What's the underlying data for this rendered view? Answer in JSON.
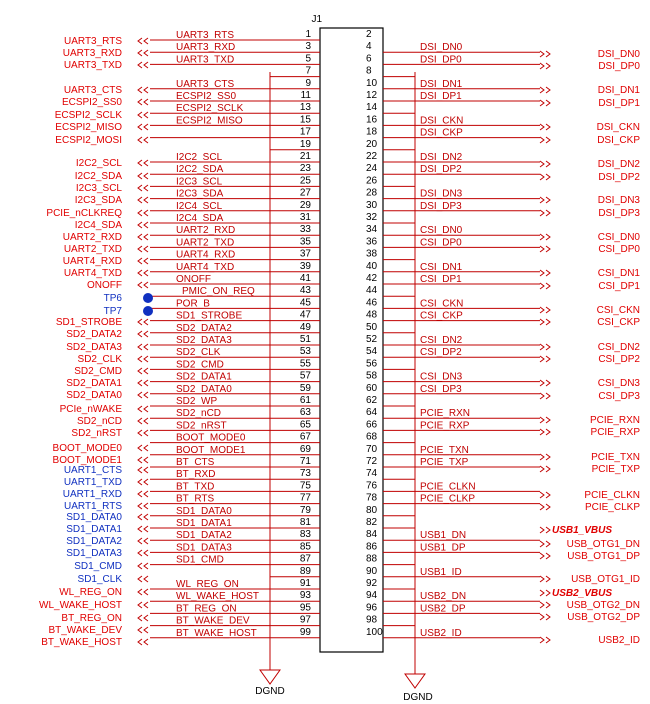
{
  "designator": "J1",
  "ground_labels": [
    "DGND",
    "DGND"
  ],
  "left_pins": [
    {
      "number": 1,
      "net": "UART3_RTS"
    },
    {
      "number": 3,
      "net": "UART3_RXD"
    },
    {
      "number": 5,
      "net": "UART3_TXD"
    },
    {
      "number": 7
    },
    {
      "number": 9,
      "net": "UART3_CTS"
    },
    {
      "number": 11,
      "net": "ECSPI2_SS0"
    },
    {
      "number": 13,
      "net": "ECSPI2_SCLK"
    },
    {
      "number": 15,
      "net": "ECSPI2_MISO"
    },
    {
      "number": 17
    },
    {
      "number": 19
    },
    {
      "number": 21,
      "net": "I2C2_SCL"
    },
    {
      "number": 23,
      "net": "I2C2_SDA"
    },
    {
      "number": 25,
      "net": "I2C3_SCL"
    },
    {
      "number": 27,
      "net": "I2C3_SDA"
    },
    {
      "number": 29,
      "net": "I2C4_SCL"
    },
    {
      "number": 31,
      "net": "I2C4_SDA"
    },
    {
      "number": 33,
      "net": "UART2_RXD"
    },
    {
      "number": 35,
      "net": "UART2_TXD"
    },
    {
      "number": 37,
      "net": "UART4_RXD"
    },
    {
      "number": 39,
      "net": "UART4_TXD"
    },
    {
      "number": 41,
      "net": "ONOFF"
    },
    {
      "number": 43,
      "net": "PMIC_ON_REQ"
    },
    {
      "number": 45,
      "net": "POR_B"
    },
    {
      "number": 47,
      "net": "SD1_STROBE"
    },
    {
      "number": 49,
      "net": "SD2_DATA2"
    },
    {
      "number": 51,
      "net": "SD2_DATA3"
    },
    {
      "number": 53,
      "net": "SD2_CLK"
    },
    {
      "number": 55,
      "net": "SD2_CMD"
    },
    {
      "number": 57,
      "net": "SD2_DATA1"
    },
    {
      "number": 59,
      "net": "SD2_DATA0"
    },
    {
      "number": 61,
      "net": "SD2_WP"
    },
    {
      "number": 63,
      "net": "SD2_nCD"
    },
    {
      "number": 65,
      "net": "SD2_nRST"
    },
    {
      "number": 67,
      "net": "BOOT_MODE0"
    },
    {
      "number": 69,
      "net": "BOOT_MODE1"
    },
    {
      "number": 71,
      "net": "BT_CTS"
    },
    {
      "number": 73,
      "net": "BT_RXD"
    },
    {
      "number": 75,
      "net": "BT_TXD"
    },
    {
      "number": 77,
      "net": "BT_RTS"
    },
    {
      "number": 79,
      "net": "SD1_DATA0"
    },
    {
      "number": 81,
      "net": "SD1_DATA1"
    },
    {
      "number": 83,
      "net": "SD1_DATA2"
    },
    {
      "number": 85,
      "net": "SD1_DATA3"
    },
    {
      "number": 87,
      "net": "SD1_CMD"
    },
    {
      "number": 89
    },
    {
      "number": 91,
      "net": "WL_REG_ON"
    },
    {
      "number": 93,
      "net": "WL_WAKE_HOST"
    },
    {
      "number": 95,
      "net": "BT_REG_ON"
    },
    {
      "number": 97,
      "net": "BT_WAKE_DEV"
    },
    {
      "number": 99,
      "net": "BT_WAKE_HOST"
    }
  ],
  "right_pins": [
    {
      "number": 2
    },
    {
      "number": 4,
      "net": "DSI_DN0"
    },
    {
      "number": 6,
      "net": "DSI_DP0"
    },
    {
      "number": 8
    },
    {
      "number": 10,
      "net": "DSI_DN1"
    },
    {
      "number": 12,
      "net": "DSI_DP1"
    },
    {
      "number": 14
    },
    {
      "number": 16,
      "net": "DSI_CKN"
    },
    {
      "number": 18,
      "net": "DSI_CKP"
    },
    {
      "number": 20
    },
    {
      "number": 22,
      "net": "DSI_DN2"
    },
    {
      "number": 24,
      "net": "DSI_DP2"
    },
    {
      "number": 26
    },
    {
      "number": 28,
      "net": "DSI_DN3"
    },
    {
      "number": 30,
      "net": "DSI_DP3"
    },
    {
      "number": 32
    },
    {
      "number": 34,
      "net": "CSI_DN0"
    },
    {
      "number": 36,
      "net": "CSI_DP0"
    },
    {
      "number": 38
    },
    {
      "number": 40,
      "net": "CSI_DN1"
    },
    {
      "number": 42,
      "net": "CSI_DP1"
    },
    {
      "number": 44
    },
    {
      "number": 46,
      "net": "CSI_CKN"
    },
    {
      "number": 48,
      "net": "CSI_CKP"
    },
    {
      "number": 50
    },
    {
      "number": 52,
      "net": "CSI_DN2"
    },
    {
      "number": 54,
      "net": "CSI_DP2"
    },
    {
      "number": 56
    },
    {
      "number": 58,
      "net": "CSI_DN3"
    },
    {
      "number": 60,
      "net": "CSI_DP3"
    },
    {
      "number": 62
    },
    {
      "number": 64,
      "net": "PCIE_RXN"
    },
    {
      "number": 66,
      "net": "PCIE_RXP"
    },
    {
      "number": 68
    },
    {
      "number": 70,
      "net": "PCIE_TXN"
    },
    {
      "number": 72,
      "net": "PCIE_TXP"
    },
    {
      "number": 74
    },
    {
      "number": 76,
      "net": "PCIE_CLKN"
    },
    {
      "number": 78,
      "net": "PCIE_CLKP"
    },
    {
      "number": 80
    },
    {
      "number": 82
    },
    {
      "number": 84,
      "net": "USB1_DN"
    },
    {
      "number": 86,
      "net": "USB1_DP"
    },
    {
      "number": 88
    },
    {
      "number": 90,
      "net": "USB1_ID"
    },
    {
      "number": 92
    },
    {
      "number": 94,
      "net": "USB2_DN"
    },
    {
      "number": 96,
      "net": "USB2_DP"
    },
    {
      "number": 98
    },
    {
      "number": 100,
      "net": "USB2_ID"
    }
  ],
  "left_ports": [
    {
      "label": "UART3_RTS",
      "color": "red"
    },
    {
      "label": "UART3_RXD",
      "color": "red"
    },
    {
      "label": "UART3_TXD",
      "color": "red"
    },
    {
      "label": "UART3_CTS",
      "color": "red"
    },
    {
      "label": "ECSPI2_SS0",
      "color": "red"
    },
    {
      "label": "ECSPI2_SCLK",
      "color": "red"
    },
    {
      "label": "ECSPI2_MISO",
      "color": "red"
    },
    {
      "label": "ECSPI2_MOSI",
      "color": "red"
    },
    {
      "label": "I2C2_SCL",
      "color": "red"
    },
    {
      "label": "I2C2_SDA",
      "color": "red"
    },
    {
      "label": "I2C3_SCL",
      "color": "red"
    },
    {
      "label": "I2C3_SDA",
      "color": "red"
    },
    {
      "label": "PCIE_nCLKREQ",
      "color": "red"
    },
    {
      "label": "I2C4_SDA",
      "color": "red"
    },
    {
      "label": "UART2_RXD",
      "color": "red"
    },
    {
      "label": "UART2_TXD",
      "color": "red"
    },
    {
      "label": "UART4_RXD",
      "color": "red"
    },
    {
      "label": "UART4_TXD",
      "color": "red"
    },
    {
      "label": "ONOFF",
      "color": "red"
    },
    {
      "label": "TP6",
      "color": "blue"
    },
    {
      "label": "TP7",
      "color": "blue"
    },
    {
      "label": "SD1_STROBE",
      "color": "red"
    },
    {
      "label": "SD2_DATA2",
      "color": "red"
    },
    {
      "label": "SD2_DATA3",
      "color": "red"
    },
    {
      "label": "SD2_CLK",
      "color": "red"
    },
    {
      "label": "SD2_CMD",
      "color": "red"
    },
    {
      "label": "SD2_DATA1",
      "color": "red"
    },
    {
      "label": "SD2_DATA0",
      "color": "red"
    },
    {
      "label": "PCIe_nWAKE",
      "color": "red"
    },
    {
      "label": "SD2_nCD",
      "color": "red"
    },
    {
      "label": "SD2_nRST",
      "color": "red"
    },
    {
      "label": "BOOT_MODE0",
      "color": "red"
    },
    {
      "label": "BOOT_MODE1",
      "color": "red"
    },
    {
      "label": "UART1_CTS",
      "color": "blue"
    },
    {
      "label": "UART1_TXD",
      "color": "blue"
    },
    {
      "label": "UART1_RXD",
      "color": "blue"
    },
    {
      "label": "UART1_RTS",
      "color": "blue"
    },
    {
      "label": "SD1_DATA0",
      "color": "blue"
    },
    {
      "label": "SD1_DATA1",
      "color": "blue"
    },
    {
      "label": "SD1_DATA2",
      "color": "blue"
    },
    {
      "label": "SD1_DATA3",
      "color": "blue"
    },
    {
      "label": "SD1_CMD",
      "color": "blue"
    },
    {
      "label": "SD1_CLK",
      "color": "blue"
    },
    {
      "label": "WL_REG_ON",
      "color": "red"
    },
    {
      "label": "WL_WAKE_HOST",
      "color": "red"
    },
    {
      "label": "BT_REG_ON",
      "color": "red"
    },
    {
      "label": "BT_WAKE_DEV",
      "color": "red"
    },
    {
      "label": "BT_WAKE_HOST",
      "color": "red"
    }
  ],
  "right_ports": [
    {
      "label": "DSI_DN0",
      "color": "red"
    },
    {
      "label": "DSI_DP0",
      "color": "red"
    },
    {
      "label": "DSI_DN1",
      "color": "red"
    },
    {
      "label": "DSI_DP1",
      "color": "red"
    },
    {
      "label": "DSI_CKN",
      "color": "red"
    },
    {
      "label": "DSI_CKP",
      "color": "red"
    },
    {
      "label": "DSI_DN2",
      "color": "red"
    },
    {
      "label": "DSI_DP2",
      "color": "red"
    },
    {
      "label": "DSI_DN3",
      "color": "red"
    },
    {
      "label": "DSI_DP3",
      "color": "red"
    },
    {
      "label": "CSI_DN0",
      "color": "red"
    },
    {
      "label": "CSI_DP0",
      "color": "red"
    },
    {
      "label": "CSI_DN1",
      "color": "red"
    },
    {
      "label": "CSI_DP1",
      "color": "red"
    },
    {
      "label": "CSI_CKN",
      "color": "red"
    },
    {
      "label": "CSI_CKP",
      "color": "red"
    },
    {
      "label": "CSI_DN2",
      "color": "red"
    },
    {
      "label": "CSI_DP2",
      "color": "red"
    },
    {
      "label": "CSI_DN3",
      "color": "red"
    },
    {
      "label": "CSI_DP3",
      "color": "red"
    },
    {
      "label": "PCIE_RXN",
      "color": "red"
    },
    {
      "label": "PCIE_RXP",
      "color": "red"
    },
    {
      "label": "PCIE_TXN",
      "color": "red"
    },
    {
      "label": "PCIE_TXP",
      "color": "red"
    },
    {
      "label": "PCIE_CLKN",
      "color": "red"
    },
    {
      "label": "PCIE_CLKP",
      "color": "red"
    },
    {
      "label": "USB1_VBUS",
      "color": "red"
    },
    {
      "label": "USB_OTG1_DN",
      "color": "red"
    },
    {
      "label": "USB_OTG1_DP",
      "color": "red"
    },
    {
      "label": "USB_OTG1_ID",
      "color": "red"
    },
    {
      "label": "USB2_VBUS",
      "color": "red"
    },
    {
      "label": "USB_OTG2_DN",
      "color": "red"
    },
    {
      "label": "USB_OTG2_DP",
      "color": "red"
    },
    {
      "label": "USB2_ID",
      "color": "red"
    }
  ]
}
